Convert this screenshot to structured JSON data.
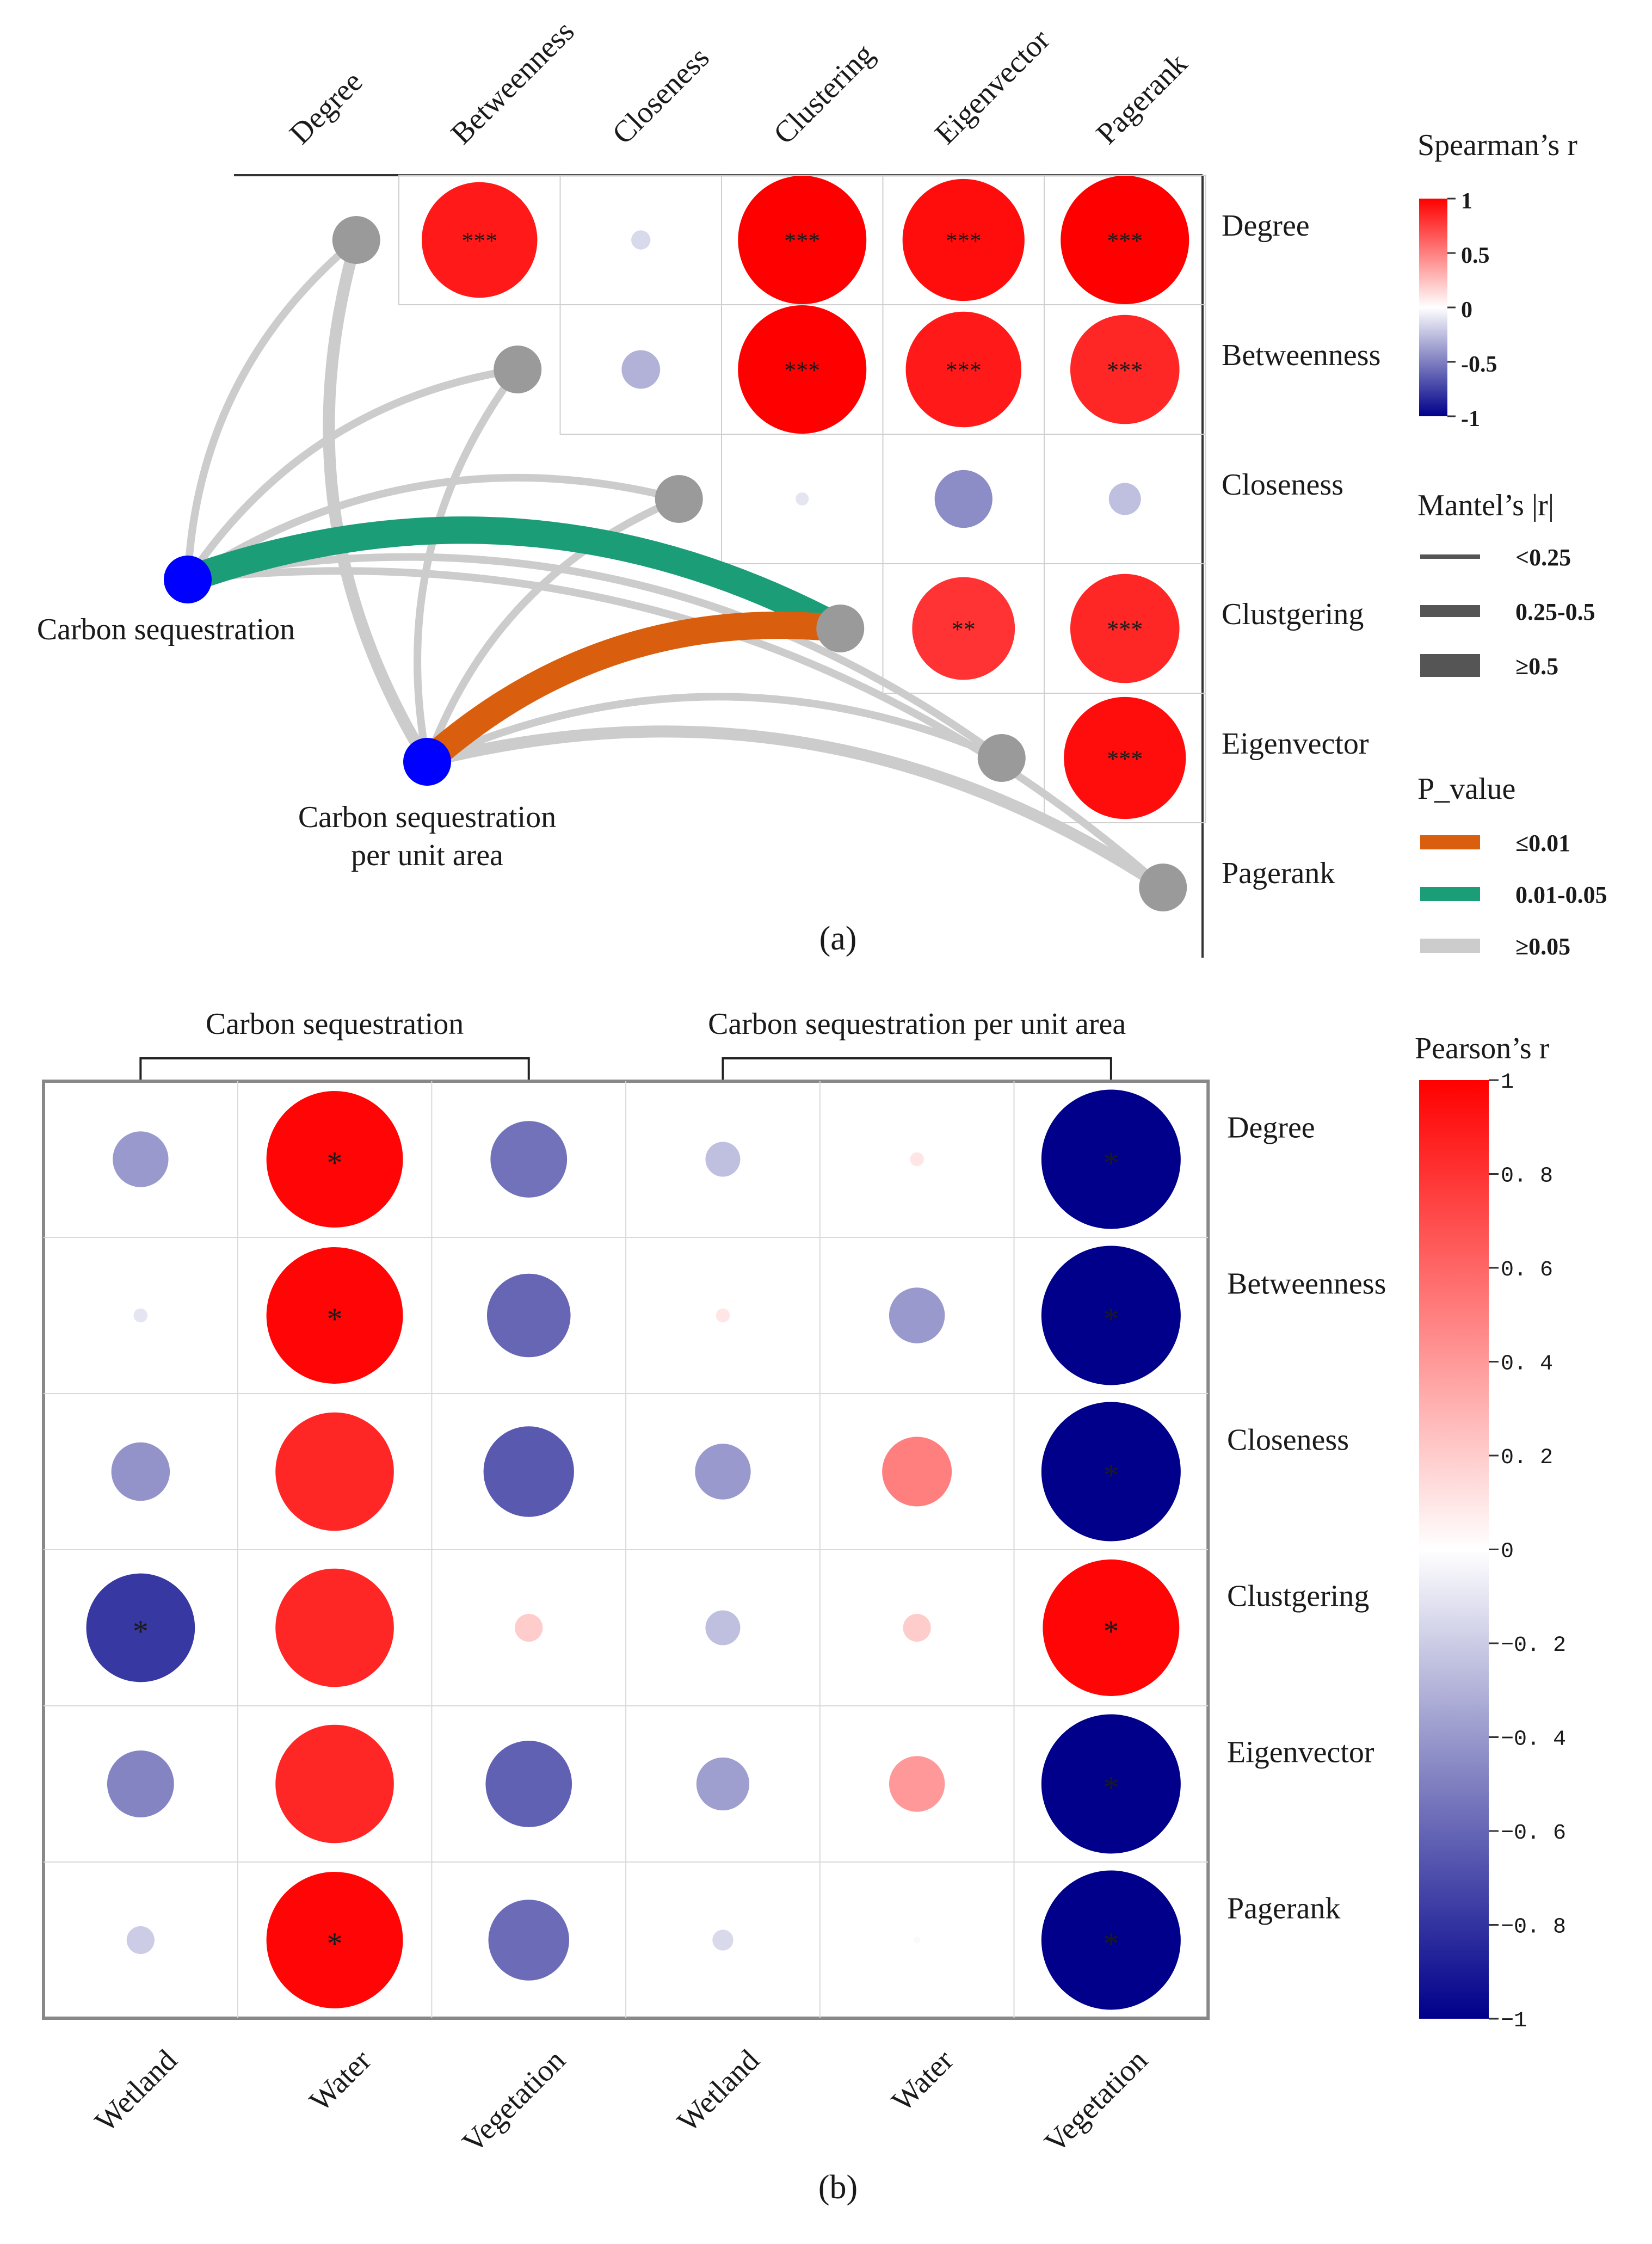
{
  "chart_data": [
    {
      "type": "correlation-matrix-mantel",
      "panel_label": "(a)",
      "variables": [
        "Degree",
        "Betweenness",
        "Closeness",
        "Clustering",
        "Eigenvector",
        "Pagerank"
      ],
      "row_labels": [
        "Degree",
        "Betweenness",
        "Closeness",
        "Clustgering",
        "Eigenvector",
        "Pagerank"
      ],
      "spearman_cells": [
        {
          "row": 0,
          "col": 1,
          "r": 0.9,
          "sig": "***"
        },
        {
          "row": 0,
          "col": 2,
          "r": -0.15,
          "sig": ""
        },
        {
          "row": 0,
          "col": 3,
          "r": 1.0,
          "sig": "***"
        },
        {
          "row": 0,
          "col": 4,
          "r": 0.95,
          "sig": "***"
        },
        {
          "row": 0,
          "col": 5,
          "r": 1.0,
          "sig": "***"
        },
        {
          "row": 1,
          "col": 2,
          "r": -0.3,
          "sig": ""
        },
        {
          "row": 1,
          "col": 3,
          "r": 1.0,
          "sig": "***"
        },
        {
          "row": 1,
          "col": 4,
          "r": 0.9,
          "sig": "***"
        },
        {
          "row": 1,
          "col": 5,
          "r": 0.85,
          "sig": "***"
        },
        {
          "row": 2,
          "col": 3,
          "r": -0.1,
          "sig": ""
        },
        {
          "row": 2,
          "col": 4,
          "r": -0.45,
          "sig": ""
        },
        {
          "row": 2,
          "col": 5,
          "r": -0.25,
          "sig": ""
        },
        {
          "row": 3,
          "col": 4,
          "r": 0.8,
          "sig": "**"
        },
        {
          "row": 3,
          "col": 5,
          "r": 0.85,
          "sig": "***"
        },
        {
          "row": 4,
          "col": 5,
          "r": 0.95,
          "sig": "***"
        }
      ],
      "mantel_sources": [
        "Carbon sequestration",
        "Carbon sequestration per unit area"
      ],
      "mantel_source_label_lines": [
        [
          "Carbon sequestration"
        ],
        [
          "Carbon sequestration",
          "per unit area"
        ]
      ],
      "mantel_links": [
        {
          "from": 0,
          "to": 0,
          "r_class": "<0.25",
          "p_class": ">=0.05"
        },
        {
          "from": 0,
          "to": 1,
          "r_class": "<0.25",
          "p_class": ">=0.05"
        },
        {
          "from": 0,
          "to": 2,
          "r_class": "<0.25",
          "p_class": ">=0.05"
        },
        {
          "from": 0,
          "to": 3,
          "r_class": ">=0.5",
          "p_class": "0.01-0.05"
        },
        {
          "from": 0,
          "to": 4,
          "r_class": "<0.25",
          "p_class": ">=0.05"
        },
        {
          "from": 0,
          "to": 5,
          "r_class": "<0.25",
          "p_class": ">=0.05"
        },
        {
          "from": 1,
          "to": 0,
          "r_class": "0.25-0.5",
          "p_class": ">=0.05"
        },
        {
          "from": 1,
          "to": 1,
          "r_class": "<0.25",
          "p_class": ">=0.05"
        },
        {
          "from": 1,
          "to": 2,
          "r_class": "<0.25",
          "p_class": ">=0.05"
        },
        {
          "from": 1,
          "to": 3,
          "r_class": ">=0.5",
          "p_class": "<=0.01"
        },
        {
          "from": 1,
          "to": 4,
          "r_class": "<0.25",
          "p_class": ">=0.05"
        },
        {
          "from": 1,
          "to": 5,
          "r_class": "0.25-0.5",
          "p_class": ">=0.05"
        }
      ],
      "legend": {
        "spearman_title": "Spearman’s r",
        "spearman_ticks": [
          "1",
          "0.5",
          "0",
          "-0.5",
          "-1"
        ],
        "mantel_title": "Mantel’s  |r|",
        "mantel_items": [
          "<0.25",
          "0.25-0.5",
          "≥0.5"
        ],
        "p_title": "P_value",
        "p_items": [
          {
            "label": "≤0.01",
            "color": "#d95f0e"
          },
          {
            "label": "0.01-0.05",
            "color": "#1b9e77"
          },
          {
            "label": "≥0.05",
            "color": "#cccccc"
          }
        ]
      }
    },
    {
      "type": "correlation-heatmap",
      "panel_label": "(b)",
      "group_labels": [
        "Carbon sequestration",
        "Carbon sequestration per unit area"
      ],
      "columns": [
        "Wetland",
        "Water",
        "Vegetation",
        "Wetland",
        "Water",
        "Vegetation"
      ],
      "rows": [
        "Degree",
        "Betweenness",
        "Closeness",
        "Clustgering",
        "Eigenvector",
        "Pagerank"
      ],
      "values": [
        [
          -0.4,
          0.98,
          -0.55,
          -0.25,
          0.1,
          -1.0
        ],
        [
          -0.1,
          0.98,
          -0.6,
          0.1,
          -0.4,
          -1.0
        ],
        [
          -0.42,
          0.85,
          -0.65,
          -0.4,
          0.5,
          -1.0
        ],
        [
          -0.78,
          0.85,
          0.2,
          -0.25,
          0.2,
          0.98
        ],
        [
          -0.48,
          0.85,
          -0.62,
          -0.38,
          0.4,
          -1.0
        ],
        [
          -0.2,
          0.98,
          -0.58,
          -0.15,
          -0.02,
          -1.0
        ]
      ],
      "significance": [
        [
          "",
          "*",
          "",
          "",
          "",
          "*"
        ],
        [
          "",
          "*",
          "",
          "",
          "",
          "*"
        ],
        [
          "",
          "",
          "",
          "",
          "",
          "*"
        ],
        [
          "*",
          "",
          "",
          "",
          "",
          "*"
        ],
        [
          "",
          "",
          "",
          "",
          "",
          "*"
        ],
        [
          "",
          "*",
          "",
          "",
          "",
          "*"
        ]
      ],
      "legend": {
        "title": "Pearson’s r",
        "ticks": [
          "1",
          "0. 8",
          "0. 6",
          "0. 4",
          "0. 2",
          "0",
          "−0. 2",
          "−0. 4",
          "−0. 6",
          "−0. 8",
          "−1"
        ]
      }
    }
  ]
}
